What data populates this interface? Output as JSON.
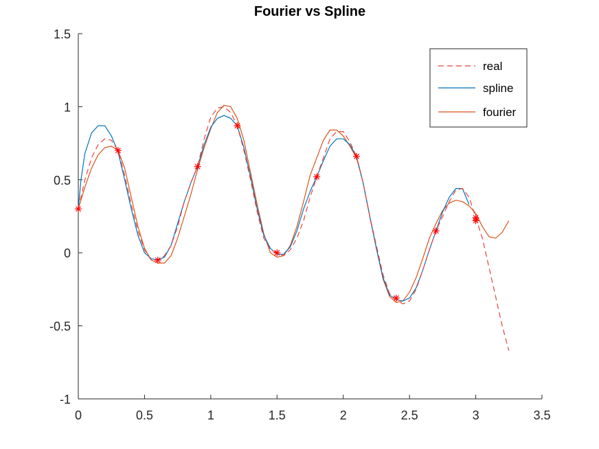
{
  "chart_data": {
    "type": "line",
    "title": "Fourier vs Spline",
    "xlabel": "",
    "ylabel": "",
    "xlim": [
      0,
      3.5
    ],
    "ylim": [
      -1,
      1.5
    ],
    "xticks": [
      0,
      0.5,
      1,
      1.5,
      2,
      2.5,
      3,
      3.5
    ],
    "yticks": [
      -1,
      -0.5,
      0,
      0.5,
      1,
      1.5
    ],
    "xtick_labels": [
      "0",
      "0.5",
      "1",
      "1.5",
      "2",
      "2.5",
      "3",
      "3.5"
    ],
    "ytick_labels": [
      "-1",
      "-0.5",
      "0",
      "0.5",
      "1",
      "1.5"
    ],
    "grid": false,
    "legend_position": "top-right",
    "series": [
      {
        "name": "real",
        "style": "dashed",
        "color": "#e8413b",
        "x": [
          0,
          0.02,
          0.05,
          0.1,
          0.15,
          0.2,
          0.25,
          0.3,
          0.35,
          0.4,
          0.45,
          0.5,
          0.55,
          0.6,
          0.65,
          0.7,
          0.75,
          0.8,
          0.85,
          0.9,
          0.95,
          1.0,
          1.05,
          1.1,
          1.15,
          1.2,
          1.25,
          1.3,
          1.35,
          1.4,
          1.45,
          1.5,
          1.55,
          1.6,
          1.65,
          1.7,
          1.75,
          1.8,
          1.85,
          1.9,
          1.95,
          2.0,
          2.05,
          2.1,
          2.15,
          2.2,
          2.25,
          2.3,
          2.35,
          2.4,
          2.45,
          2.5,
          2.55,
          2.6,
          2.65,
          2.7,
          2.75,
          2.8,
          2.85,
          2.9,
          2.95,
          3.0,
          3.05,
          3.1,
          3.15,
          3.2,
          3.25
        ],
        "y": [
          0.3,
          0.38,
          0.5,
          0.65,
          0.74,
          0.78,
          0.77,
          0.7,
          0.53,
          0.33,
          0.15,
          0.02,
          -0.05,
          -0.05,
          -0.02,
          0.05,
          0.18,
          0.35,
          0.48,
          0.59,
          0.78,
          0.93,
          0.99,
          1.0,
          0.96,
          0.87,
          0.7,
          0.5,
          0.28,
          0.1,
          0.02,
          0.0,
          -0.02,
          0.02,
          0.1,
          0.22,
          0.38,
          0.52,
          0.65,
          0.78,
          0.83,
          0.83,
          0.76,
          0.66,
          0.48,
          0.25,
          0.05,
          -0.15,
          -0.28,
          -0.32,
          -0.35,
          -0.33,
          -0.25,
          -0.12,
          0.02,
          0.15,
          0.25,
          0.35,
          0.43,
          0.44,
          0.38,
          0.24,
          0.1,
          -0.1,
          -0.3,
          -0.5,
          -0.67
        ]
      },
      {
        "name": "spline",
        "style": "solid",
        "color": "#0072bd",
        "x": [
          0,
          0.02,
          0.05,
          0.1,
          0.15,
          0.2,
          0.25,
          0.3,
          0.35,
          0.4,
          0.45,
          0.5,
          0.55,
          0.6,
          0.65,
          0.7,
          0.75,
          0.8,
          0.85,
          0.9,
          0.95,
          1.0,
          1.05,
          1.1,
          1.15,
          1.2,
          1.25,
          1.3,
          1.35,
          1.4,
          1.45,
          1.5,
          1.55,
          1.6,
          1.65,
          1.7,
          1.75,
          1.8,
          1.85,
          1.9,
          1.95,
          2.0,
          2.05,
          2.1,
          2.15,
          2.2,
          2.25,
          2.3,
          2.35,
          2.4,
          2.45,
          2.5,
          2.55,
          2.6,
          2.65,
          2.7,
          2.75,
          2.8,
          2.85,
          2.9,
          2.95
        ],
        "y": [
          0.3,
          0.5,
          0.68,
          0.82,
          0.87,
          0.87,
          0.8,
          0.69,
          0.5,
          0.3,
          0.12,
          0.0,
          -0.04,
          -0.05,
          -0.03,
          0.05,
          0.2,
          0.35,
          0.48,
          0.59,
          0.74,
          0.86,
          0.92,
          0.94,
          0.92,
          0.87,
          0.72,
          0.52,
          0.3,
          0.12,
          0.03,
          -0.01,
          -0.01,
          0.04,
          0.15,
          0.3,
          0.42,
          0.52,
          0.63,
          0.73,
          0.78,
          0.78,
          0.74,
          0.66,
          0.48,
          0.25,
          0.03,
          -0.17,
          -0.29,
          -0.32,
          -0.33,
          -0.31,
          -0.24,
          -0.12,
          0.02,
          0.15,
          0.28,
          0.38,
          0.44,
          0.44,
          0.33
        ]
      },
      {
        "name": "fourier",
        "style": "solid",
        "color": "#d95319",
        "x": [
          0,
          0.05,
          0.1,
          0.15,
          0.2,
          0.25,
          0.3,
          0.35,
          0.4,
          0.45,
          0.5,
          0.55,
          0.6,
          0.65,
          0.7,
          0.75,
          0.8,
          0.85,
          0.9,
          0.95,
          1.0,
          1.05,
          1.1,
          1.15,
          1.2,
          1.25,
          1.3,
          1.35,
          1.4,
          1.45,
          1.5,
          1.55,
          1.6,
          1.65,
          1.7,
          1.75,
          1.8,
          1.85,
          1.9,
          1.95,
          2.0,
          2.05,
          2.1,
          2.15,
          2.2,
          2.25,
          2.3,
          2.35,
          2.4,
          2.45,
          2.5,
          2.55,
          2.6,
          2.65,
          2.7,
          2.75,
          2.8,
          2.85,
          2.9,
          2.95,
          3.0,
          3.05,
          3.1,
          3.15,
          3.2,
          3.25
        ],
        "y": [
          0.3,
          0.45,
          0.58,
          0.67,
          0.72,
          0.73,
          0.7,
          0.58,
          0.38,
          0.18,
          0.03,
          -0.05,
          -0.07,
          -0.07,
          -0.02,
          0.1,
          0.25,
          0.4,
          0.57,
          0.72,
          0.85,
          0.96,
          1.01,
          1.0,
          0.92,
          0.77,
          0.55,
          0.33,
          0.13,
          0.0,
          -0.03,
          -0.02,
          0.05,
          0.18,
          0.35,
          0.53,
          0.65,
          0.77,
          0.84,
          0.84,
          0.8,
          0.73,
          0.65,
          0.48,
          0.25,
          0.03,
          -0.18,
          -0.3,
          -0.34,
          -0.33,
          -0.27,
          -0.17,
          -0.04,
          0.1,
          0.2,
          0.29,
          0.34,
          0.36,
          0.35,
          0.32,
          0.27,
          0.18,
          0.11,
          0.1,
          0.14,
          0.22
        ]
      },
      {
        "name": "samples",
        "style": "markers",
        "color": "#ff0000",
        "x": [
          0,
          0.3,
          0.6,
          0.9,
          1.2,
          1.5,
          1.8,
          2.1,
          2.4,
          2.7,
          3.0,
          3.0
        ],
        "y": [
          0.3,
          0.7,
          -0.05,
          0.59,
          0.87,
          0.0,
          0.52,
          0.66,
          -0.31,
          0.15,
          0.24,
          0.22
        ]
      }
    ]
  }
}
